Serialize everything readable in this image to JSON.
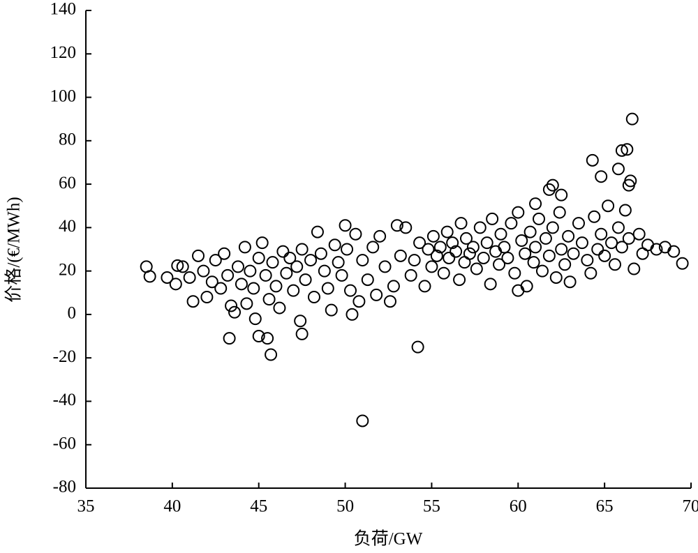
{
  "chart_data": {
    "type": "scatter",
    "xlabel": "负荷/GW",
    "ylabel": "价格/(€/MWh)",
    "x": [
      51,
      54.2,
      45.7,
      43.3,
      45,
      45.5,
      47.5,
      47.4,
      44.8,
      66.6,
      66.3,
      66,
      64.3,
      65.8,
      66.5,
      66.4,
      64.8,
      62,
      61.8,
      62.5,
      61,
      38.5,
      38.7,
      39.7,
      40.3,
      69.5,
      69,
      68,
      68.5,
      40.2,
      40.6,
      41,
      41.2,
      41.5,
      41.8,
      42,
      42.3,
      42.5,
      42.8,
      43,
      43.2,
      43.4,
      43.6,
      43.8,
      44,
      44.2,
      44.3,
      44.5,
      44.7,
      45,
      45.2,
      45.4,
      45.6,
      45.8,
      46,
      46.2,
      46.4,
      46.6,
      46.8,
      47,
      47.2,
      47.5,
      47.7,
      48,
      48.2,
      48.4,
      48.6,
      48.8,
      49,
      49.2,
      49.4,
      49.6,
      49.8,
      50,
      50.1,
      50.3,
      50.4,
      50.6,
      50.8,
      51,
      51.3,
      51.6,
      51.8,
      52,
      52.3,
      52.6,
      52.8,
      53,
      53.2,
      53.5,
      53.8,
      54,
      54.3,
      54.6,
      54.8,
      55,
      55.1,
      55.3,
      55.5,
      55.7,
      55.9,
      56,
      56.2,
      56.4,
      56.6,
      56.7,
      56.9,
      57,
      57.2,
      57.4,
      57.6,
      57.8,
      58,
      58.2,
      58.4,
      58.5,
      58.7,
      58.9,
      59,
      59.2,
      59.4,
      59.6,
      59.8,
      60,
      60,
      60.2,
      60.4,
      60.5,
      60.7,
      60.9,
      61,
      61.2,
      61.4,
      61.6,
      61.8,
      62,
      62.2,
      62.4,
      62.5,
      62.7,
      62.9,
      63,
      63.2,
      63.5,
      63.7,
      64,
      64.2,
      64.4,
      64.6,
      64.8,
      65,
      65.2,
      65.4,
      65.6,
      65.8,
      66,
      66.2,
      66.4,
      66.7,
      67,
      67.2,
      67.5
    ],
    "values": [
      -49,
      -15,
      -18.5,
      -11,
      -10,
      -11,
      -9,
      -3,
      -2,
      90,
      76,
      75.5,
      71,
      67,
      61.5,
      59.5,
      63.5,
      59.5,
      57.5,
      55,
      51,
      22,
      17.5,
      17,
      22.5,
      23.5,
      29,
      30,
      31,
      14,
      22,
      17,
      6,
      27,
      20,
      8,
      15,
      25,
      12,
      28,
      18,
      4,
      1,
      22,
      14,
      31,
      5,
      20,
      12,
      26,
      33,
      18,
      7,
      24,
      13,
      3,
      29,
      19,
      26,
      11,
      22,
      30,
      16,
      25,
      8,
      38,
      28,
      20,
      12,
      2,
      32,
      24,
      18,
      41,
      30,
      11,
      0,
      37,
      6,
      25,
      16,
      31,
      9,
      36,
      22,
      6,
      13,
      41,
      27,
      40,
      18,
      25,
      33,
      13,
      30,
      22,
      36,
      27,
      31,
      19,
      38,
      26,
      33,
      29,
      16,
      42,
      24,
      35,
      28,
      31,
      21,
      40,
      26,
      33,
      14,
      44,
      29,
      23,
      37,
      31,
      26,
      42,
      19,
      47,
      11,
      34,
      28,
      13,
      38,
      24,
      31,
      44,
      20,
      35,
      27,
      40,
      17,
      47,
      30,
      23,
      36,
      15,
      28,
      42,
      33,
      25,
      19,
      45,
      30,
      37,
      27,
      50,
      33,
      23,
      40,
      31,
      48,
      35,
      21,
      37,
      28,
      32
    ],
    "color": "#000000",
    "xlim": [
      35,
      70
    ],
    "xticks": [
      35,
      40,
      45,
      50,
      55,
      60,
      65,
      70
    ],
    "ylim": [
      -80,
      140
    ],
    "yticks": [
      -80,
      -60,
      -40,
      -20,
      0,
      20,
      40,
      60,
      80,
      100,
      120,
      140
    ]
  }
}
